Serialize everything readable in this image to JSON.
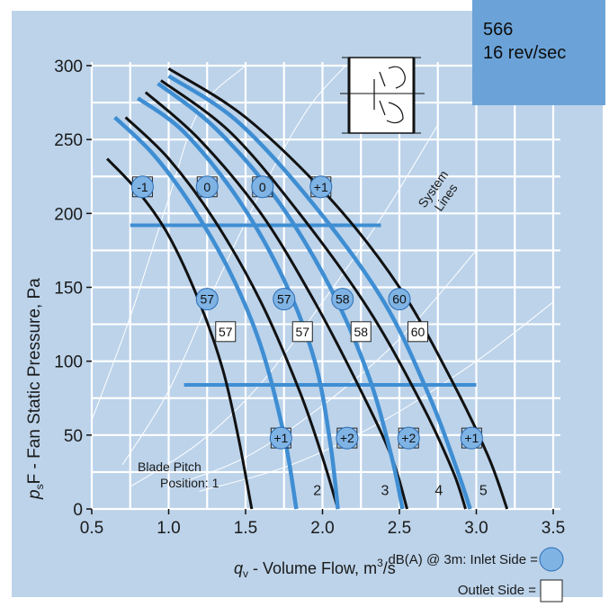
{
  "badge": {
    "model": "566",
    "speed": "16 rev/sec"
  },
  "colors": {
    "background": "#bcd3ea",
    "badge": "#6ba3d8",
    "grid": "#ffffff",
    "outlet_curve": "#111111",
    "inlet_curve": "#3f8ed3",
    "circle_fill": "#7fb3e4"
  },
  "chart_data": {
    "type": "line",
    "xlabel_symbol": "q",
    "xlabel_sub": "v",
    "xlabel_text": " - Volume Flow, m",
    "xlabel_sup": "3",
    "xlabel_tail": "/s",
    "ylabel_symbol": "p",
    "ylabel_sub": "s",
    "ylabel_text": "F - Fan Static Pressure, Pa",
    "xlim": [
      0.5,
      3.5
    ],
    "ylim": [
      0,
      300
    ],
    "xticks": [
      "0.5",
      "1.0",
      "1.5",
      "2.0",
      "2.5",
      "3.0",
      "3.5"
    ],
    "yticks": [
      "0",
      "50",
      "100",
      "150",
      "200",
      "250",
      "300"
    ],
    "grid": true,
    "blade_pitch_label_1": "Blade Pitch",
    "blade_pitch_label_2": "Position: 1",
    "system_lines_label_1": "System",
    "system_lines_label_2": "Lines",
    "legend_main": "dB(A) @ 3m:  Inlet Side =",
    "legend_outlet": "Outlet Side =",
    "series_outlet": [
      {
        "name": "1",
        "x": [
          0.6,
          0.8,
          1.0,
          1.2,
          1.35,
          1.45,
          1.54
        ],
        "y": [
          237,
          215,
          185,
          140,
          95,
          50,
          0
        ]
      },
      {
        "name": "2",
        "x": [
          0.72,
          1.0,
          1.3,
          1.6,
          1.85,
          2.0,
          2.1
        ],
        "y": [
          265,
          237,
          195,
          140,
          80,
          35,
          0
        ]
      },
      {
        "name": "3",
        "x": [
          0.85,
          1.2,
          1.6,
          1.95,
          2.25,
          2.45,
          2.55
        ],
        "y": [
          282,
          250,
          200,
          140,
          80,
          35,
          0
        ]
      },
      {
        "name": "4",
        "x": [
          0.95,
          1.4,
          1.85,
          2.3,
          2.65,
          2.85,
          2.93
        ],
        "y": [
          290,
          255,
          200,
          135,
          70,
          25,
          0
        ]
      },
      {
        "name": "5",
        "x": [
          1.0,
          1.5,
          2.05,
          2.5,
          2.85,
          3.08,
          3.2
        ],
        "y": [
          298,
          265,
          210,
          150,
          85,
          35,
          0
        ]
      }
    ],
    "series_inlet": [
      {
        "x": [
          0.65,
          0.9,
          1.15,
          1.4,
          1.6,
          1.75,
          1.83
        ],
        "y": [
          265,
          240,
          205,
          160,
          110,
          50,
          0
        ]
      },
      {
        "x": [
          0.8,
          1.1,
          1.45,
          1.75,
          1.95,
          2.05,
          2.1
        ],
        "y": [
          278,
          255,
          210,
          155,
          100,
          45,
          0
        ]
      },
      {
        "x": [
          0.93,
          1.3,
          1.7,
          2.05,
          2.3,
          2.45,
          2.52
        ],
        "y": [
          288,
          258,
          210,
          150,
          90,
          35,
          0
        ]
      },
      {
        "x": [
          1.0,
          1.45,
          1.95,
          2.4,
          2.7,
          2.88,
          2.96
        ],
        "y": [
          293,
          262,
          205,
          140,
          75,
          25,
          0
        ]
      }
    ],
    "system_lines": [
      {
        "x": [
          0.5,
          0.75,
          1.0,
          1.2,
          1.5
        ],
        "y": [
          60,
          130,
          210,
          270,
          300
        ]
      },
      {
        "x": [
          0.7,
          1.0,
          1.3,
          1.6,
          1.9,
          2.15
        ],
        "y": [
          30,
          80,
          150,
          215,
          270,
          300
        ]
      },
      {
        "x": [
          0.75,
          1.2,
          1.6,
          2.0,
          2.4,
          2.75
        ],
        "y": [
          15,
          45,
          85,
          140,
          200,
          260
        ]
      },
      {
        "x": [
          1.0,
          1.5,
          2.0,
          2.5,
          3.0
        ],
        "y": [
          15,
          35,
          70,
          115,
          175
        ]
      },
      {
        "x": [
          1.2,
          1.8,
          2.4,
          3.0,
          3.5
        ],
        "y": [
          12,
          30,
          60,
          100,
          140
        ]
      }
    ],
    "blue_bars": [
      {
        "x": [
          0.75,
          2.38
        ],
        "y": [
          192,
          192
        ]
      },
      {
        "x": [
          1.1,
          3.0
        ],
        "y": [
          84,
          84
        ]
      }
    ],
    "position_labels": [
      {
        "text": "2",
        "x": 1.94,
        "y": 12
      },
      {
        "text": "3",
        "x": 2.38,
        "y": 12
      },
      {
        "text": "4",
        "x": 2.73,
        "y": 12
      },
      {
        "text": "5",
        "x": 3.02,
        "y": 12
      }
    ],
    "markers": [
      {
        "kind": "both",
        "text": "-1",
        "x": 0.83,
        "y": 218
      },
      {
        "kind": "both",
        "text": "0",
        "x": 1.25,
        "y": 218
      },
      {
        "kind": "both",
        "text": "0",
        "x": 1.61,
        "y": 218
      },
      {
        "kind": "both",
        "text": "+1",
        "x": 1.99,
        "y": 218
      },
      {
        "kind": "circle",
        "text": "57",
        "x": 1.25,
        "y": 142
      },
      {
        "kind": "circle",
        "text": "57",
        "x": 1.75,
        "y": 142
      },
      {
        "kind": "circle",
        "text": "58",
        "x": 2.13,
        "y": 142
      },
      {
        "kind": "circle",
        "text": "60",
        "x": 2.5,
        "y": 142
      },
      {
        "kind": "square",
        "text": "57",
        "x": 1.37,
        "y": 120
      },
      {
        "kind": "square",
        "text": "57",
        "x": 1.87,
        "y": 120
      },
      {
        "kind": "square",
        "text": "58",
        "x": 2.25,
        "y": 120
      },
      {
        "kind": "square",
        "text": "60",
        "x": 2.62,
        "y": 120
      },
      {
        "kind": "both",
        "text": "+1",
        "x": 1.73,
        "y": 48
      },
      {
        "kind": "both",
        "text": "+2",
        "x": 2.16,
        "y": 48
      },
      {
        "kind": "both",
        "text": "+2",
        "x": 2.56,
        "y": 48
      },
      {
        "kind": "both",
        "text": "+1",
        "x": 2.97,
        "y": 48
      }
    ]
  }
}
